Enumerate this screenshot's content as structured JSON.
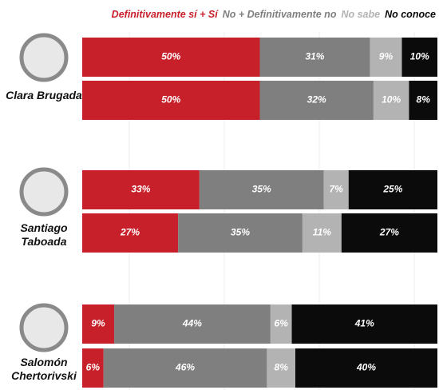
{
  "chart_data": {
    "type": "stacked_bar_horizontal",
    "categories": [
      "Clara Brugada",
      null,
      "Santiago Taboada",
      null,
      "Salomón Chertorivski",
      null
    ],
    "series": [
      {
        "name": "Definitivamente sí + Sí",
        "color": "#c8202a",
        "values": [
          50,
          50,
          33,
          27,
          9,
          6
        ],
        "value_labels": [
          "50%",
          "50%",
          "33%",
          "27%",
          "9%",
          "6%"
        ]
      },
      {
        "name": "No + Definitivamente no",
        "color": "#7f7f7f",
        "values": [
          31,
          32,
          35,
          35,
          44,
          46
        ],
        "value_labels": [
          "31%",
          "32%",
          "35%",
          "35%",
          "44%",
          "46%"
        ]
      },
      {
        "name": "No sabe",
        "color": "#b3b3b3",
        "values": [
          9,
          10,
          7,
          11,
          6,
          8
        ],
        "value_labels": [
          "9%",
          "10%",
          "7%",
          "11%",
          "6%",
          "8%"
        ]
      },
      {
        "name": "No conoce",
        "color": "#0b0b0b",
        "values": [
          10,
          8,
          25,
          27,
          41,
          40
        ],
        "value_labels": [
          "10%",
          "8%",
          "25%",
          "27%",
          "41%",
          "40%"
        ]
      }
    ],
    "xlim": [
      0,
      100
    ]
  }
}
